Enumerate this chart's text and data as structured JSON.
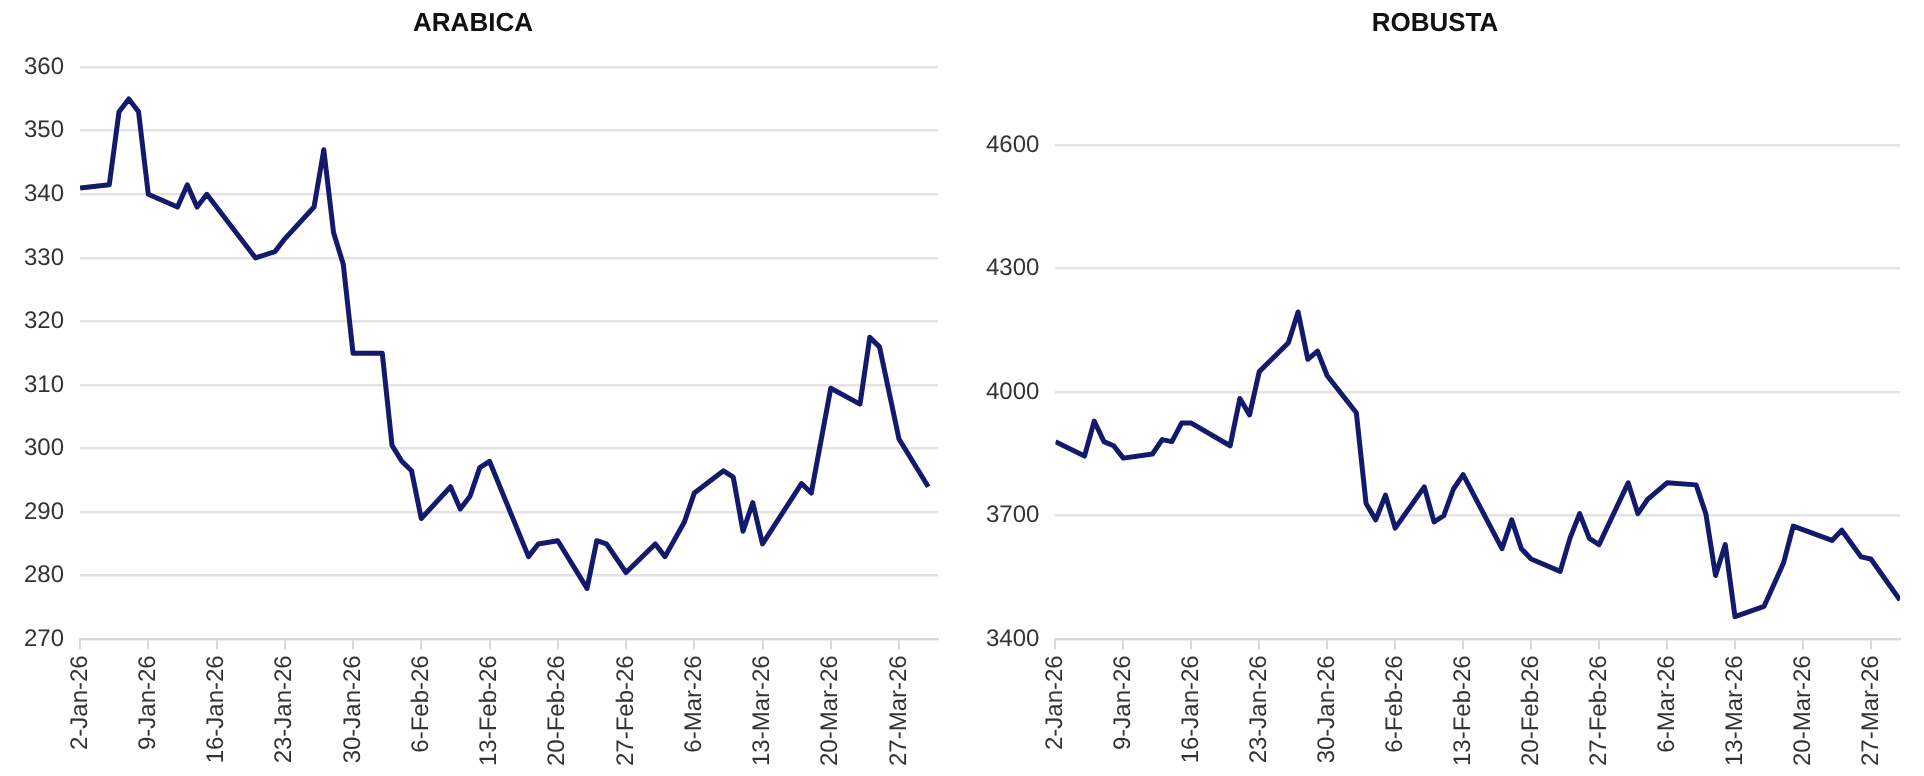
{
  "chart_data": [
    {
      "type": "line",
      "title": "ARABICA",
      "grid": "y",
      "xlim": [
        "--01-02",
        "--03-31"
      ],
      "ylim": [
        270,
        360
      ],
      "yticks": [
        270,
        280,
        290,
        300,
        310,
        320,
        330,
        340,
        350,
        360
      ],
      "xticks": [
        {
          "value": "--01-02",
          "label": "2-Jan-26"
        },
        {
          "value": "--01-09",
          "label": "9-Jan-26"
        },
        {
          "value": "--01-16",
          "label": "16-Jan-26"
        },
        {
          "value": "--01-23",
          "label": "23-Jan-26"
        },
        {
          "value": "--01-30",
          "label": "30-Jan-26"
        },
        {
          "value": "--02-06",
          "label": "6-Feb-26"
        },
        {
          "value": "--02-13",
          "label": "13-Feb-26"
        },
        {
          "value": "--02-20",
          "label": "20-Feb-26"
        },
        {
          "value": "--02-27",
          "label": "27-Feb-26"
        },
        {
          "value": "--03-06",
          "label": "6-Mar-26"
        },
        {
          "value": "--03-13",
          "label": "13-Mar-26"
        },
        {
          "value": "--03-20",
          "label": "20-Mar-26"
        },
        {
          "value": "--03-27",
          "label": "27-Mar-26"
        }
      ],
      "x": [
        "--01-02",
        "--01-05",
        "--01-06",
        "--01-07",
        "--01-08",
        "--01-09",
        "--01-12",
        "--01-13",
        "--01-14",
        "--01-15",
        "--01-16",
        "--01-20",
        "--01-22",
        "--01-23",
        "--01-26",
        "--01-27",
        "--01-28",
        "--01-29",
        "--01-30",
        "--02-02",
        "--02-03",
        "--02-04",
        "--02-05",
        "--02-06",
        "--02-09",
        "--02-10",
        "--02-11",
        "--02-12",
        "--02-13",
        "--02-17",
        "--02-18",
        "--02-20",
        "--02-23",
        "--02-24",
        "--02-25",
        "--02-27",
        "--03-02",
        "--03-03",
        "--03-05",
        "--03-06",
        "--03-09",
        "--03-10",
        "--03-11",
        "--03-12",
        "--03-13",
        "--03-17",
        "--03-18",
        "--03-20",
        "--03-23",
        "--03-24",
        "--03-25",
        "--03-27",
        "--03-30"
      ],
      "series": [
        {
          "color": "#13196b",
          "values": [
            341,
            341.5,
            353,
            355,
            353,
            340,
            338,
            341.5,
            338,
            340,
            338,
            330,
            331,
            333,
            338,
            347,
            334,
            329,
            315,
            315,
            300.5,
            298,
            296.5,
            289,
            294,
            290.5,
            292.5,
            297,
            298,
            283,
            285,
            285.5,
            278,
            285.5,
            285,
            280.5,
            285,
            283,
            288.5,
            293,
            296.5,
            295.5,
            287,
            291.5,
            285,
            294.5,
            293,
            309.5,
            307,
            317.5,
            316,
            301.5,
            294
          ]
        }
      ]
    },
    {
      "type": "line",
      "title": "ROBUSTA",
      "grid": "y",
      "xlim": [
        "--01-02",
        "--03-30"
      ],
      "ylim": [
        3400,
        4600
      ],
      "yticks": [
        3400,
        3700,
        4000,
        4300,
        4600
      ],
      "xticks": [
        {
          "value": "--01-02",
          "label": "2-Jan-26"
        },
        {
          "value": "--01-09",
          "label": "9-Jan-26"
        },
        {
          "value": "--01-16",
          "label": "16-Jan-26"
        },
        {
          "value": "--01-23",
          "label": "23-Jan-26"
        },
        {
          "value": "--01-30",
          "label": "30-Jan-26"
        },
        {
          "value": "--02-06",
          "label": "6-Feb-26"
        },
        {
          "value": "--02-13",
          "label": "13-Feb-26"
        },
        {
          "value": "--02-20",
          "label": "20-Feb-26"
        },
        {
          "value": "--02-27",
          "label": "27-Feb-26"
        },
        {
          "value": "--03-06",
          "label": "6-Mar-26"
        },
        {
          "value": "--03-13",
          "label": "13-Mar-26"
        },
        {
          "value": "--03-20",
          "label": "20-Mar-26"
        },
        {
          "value": "--03-27",
          "label": "27-Mar-26"
        }
      ],
      "x": [
        "--01-02",
        "--01-05",
        "--01-06",
        "--01-07",
        "--01-08",
        "--01-09",
        "--01-12",
        "--01-13",
        "--01-14",
        "--01-15",
        "--01-16",
        "--01-20",
        "--01-21",
        "--01-22",
        "--01-23",
        "--01-26",
        "--01-27",
        "--01-28",
        "--01-29",
        "--01-30",
        "--02-02",
        "--02-03",
        "--02-04",
        "--02-05",
        "--02-06",
        "--02-09",
        "--02-10",
        "--02-11",
        "--02-12",
        "--02-13",
        "--02-17",
        "--02-18",
        "--02-19",
        "--02-20",
        "--02-23",
        "--02-24",
        "--02-25",
        "--02-26",
        "--02-27",
        "--03-02",
        "--03-03",
        "--03-04",
        "--03-06",
        "--03-09",
        "--03-10",
        "--03-11",
        "--03-12",
        "--03-13",
        "--03-16",
        "--03-18",
        "--03-19",
        "--03-23",
        "--03-24",
        "--03-26",
        "--03-27",
        "--03-30"
      ],
      "series": [
        {
          "color": "#13196b",
          "values": [
            3880,
            3845,
            3930,
            3880,
            3870,
            3840,
            3850,
            3885,
            3880,
            3925,
            3925,
            3870,
            3985,
            3945,
            4050,
            4120,
            4195,
            4080,
            4100,
            4040,
            3950,
            3730,
            3690,
            3750,
            3670,
            3770,
            3685,
            3700,
            3765,
            3800,
            3620,
            3690,
            3620,
            3595,
            3565,
            3645,
            3705,
            3645,
            3630,
            3780,
            3705,
            3740,
            3780,
            3775,
            3705,
            3555,
            3630,
            3455,
            3480,
            3585,
            3675,
            3640,
            3665,
            3600,
            3595,
            3495
          ]
        }
      ]
    }
  ]
}
